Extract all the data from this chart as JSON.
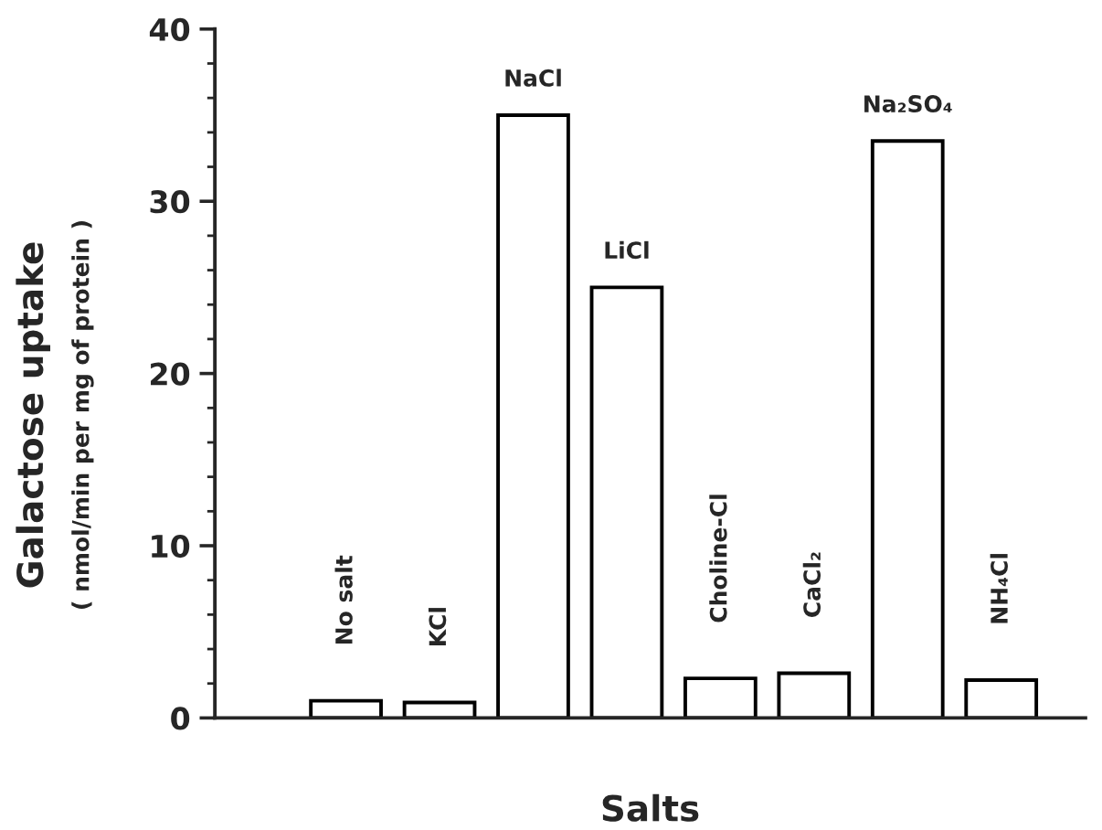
{
  "chart_data": {
    "type": "bar",
    "xlabel": "Salts",
    "ylabel": "Galactose uptake\n( nmol/min per mg of protein )",
    "categories": [
      "No salt",
      "KCl",
      "NaCl",
      "LiCl",
      "Choline-Cl",
      "CaCl₂",
      "Na₂SO₄",
      "NH₄Cl"
    ],
    "values": [
      1.0,
      0.9,
      35,
      25,
      2.3,
      2.6,
      33.5,
      2.2
    ],
    "color": "#ffffff",
    "ylim": [
      0,
      40
    ],
    "yticks": [
      0,
      10,
      20,
      30,
      40
    ],
    "tick_labels": "y",
    "grid": false,
    "legend": false
  }
}
